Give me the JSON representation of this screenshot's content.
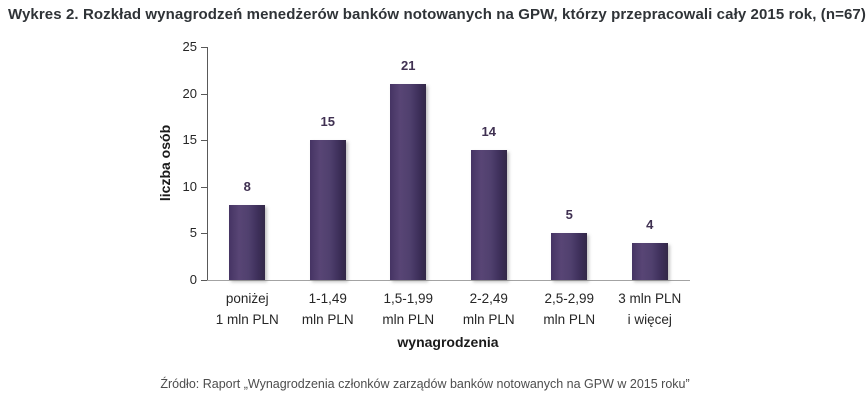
{
  "title": "Wykres 2. Rozkład wynagrodzeń menedżerów banków notowanych na GPW, którzy przepracowali cały 2015 rok, (n=67)",
  "source": "Źródło: Raport „Wynagrodzenia członków zarządów banków notowanych na GPW w 2015 roku”",
  "chart_data": {
    "type": "bar",
    "title": "Wykres 2. Rozkład wynagrodzeń menedżerów banków notowanych na GPW, którzy przepracowali cały 2015 rok, (n=67)",
    "categories": [
      [
        "poniżej",
        "1 mln PLN"
      ],
      [
        "1-1,49",
        "mln PLN"
      ],
      [
        "1,5-1,99",
        "mln PLN"
      ],
      [
        "2-2,49",
        "mln PLN"
      ],
      [
        "2,5-2,99",
        "mln PLN"
      ],
      [
        "3 mln PLN",
        "i więcej"
      ]
    ],
    "values": [
      8,
      15,
      21,
      14,
      5,
      4
    ],
    "xlabel": "wynagrodzenia",
    "ylabel": "liczba osób",
    "ylim": [
      0,
      25
    ],
    "yticks": [
      0,
      5,
      10,
      15,
      20,
      25
    ],
    "grid": false,
    "legend": false,
    "bar_color": "#4c3b6c",
    "bar_gradient": [
      "#453463",
      "#584575",
      "#332847"
    ],
    "value_label_color": "#403152",
    "axis_color": "#595959",
    "baseline_color": "#a3a3a3"
  }
}
